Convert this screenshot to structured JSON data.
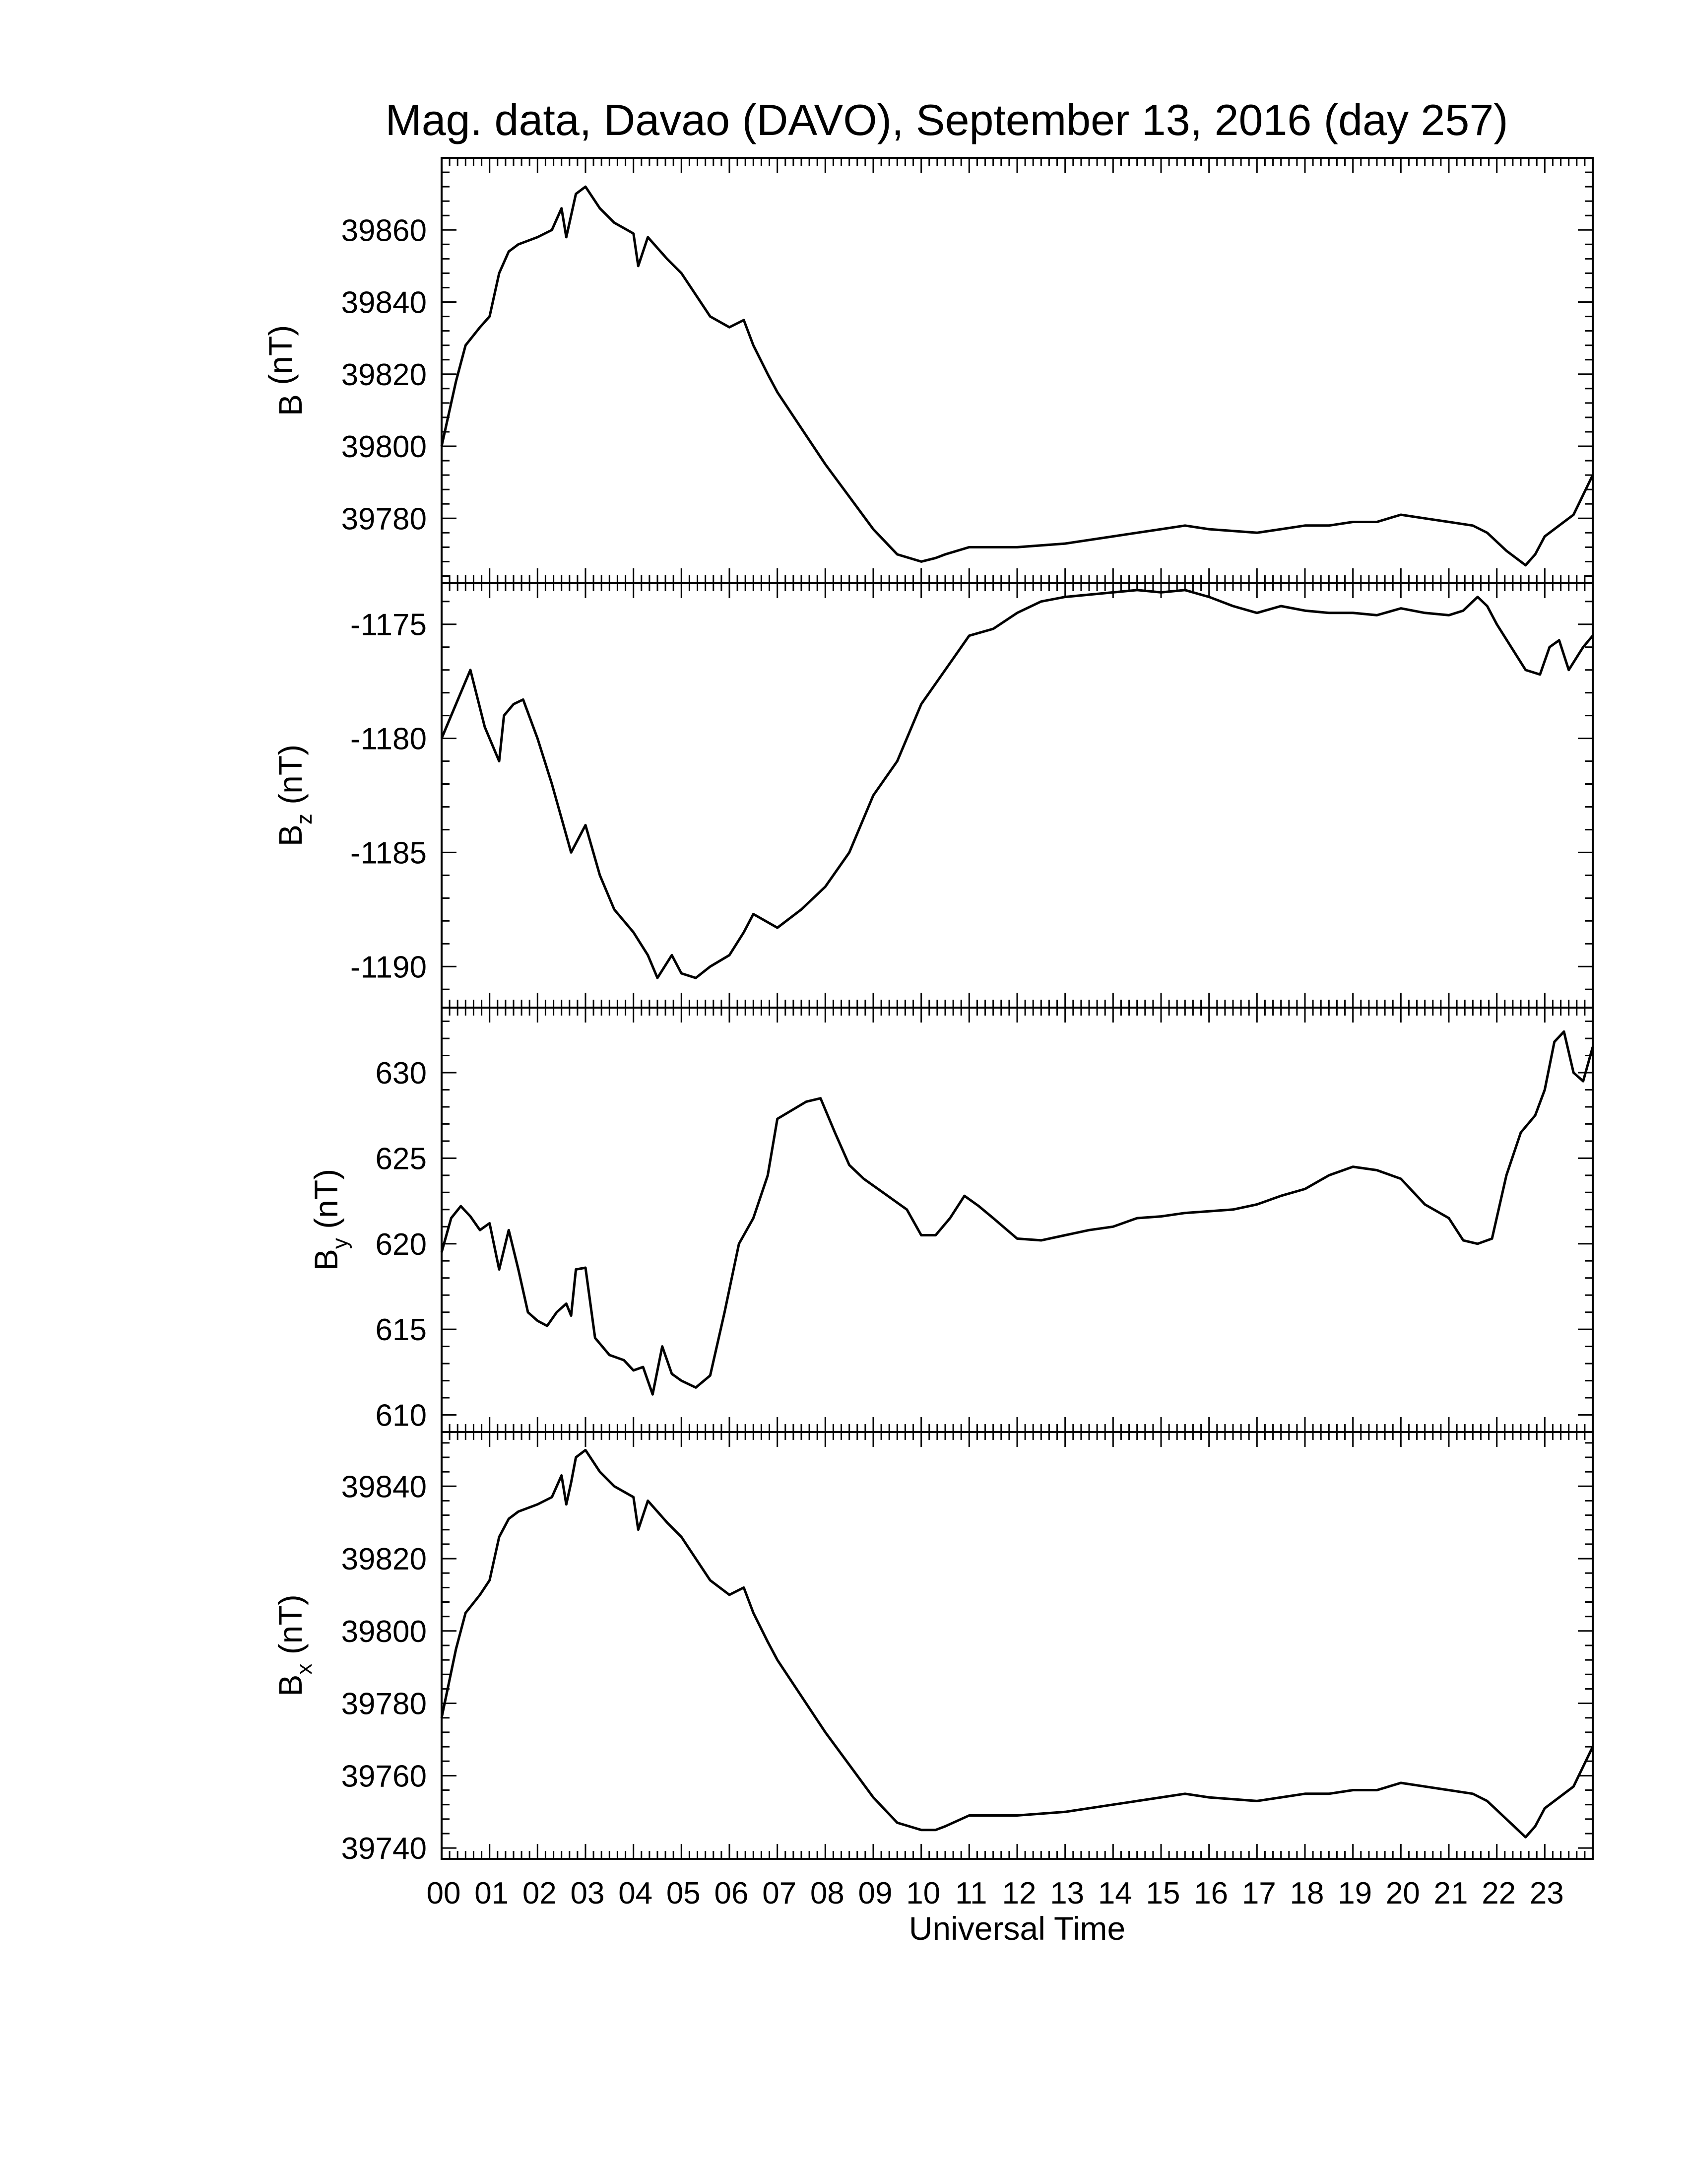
{
  "chart_data": [
    {
      "type": "line",
      "title": "Mag. data, Davao (DAVO), September 13, 2016 (day 257)",
      "ylabel": "B (nT)",
      "ylabel_main": "B",
      "ylabel_sub": "",
      "ylabel_unit": " (nT)",
      "xlim": [
        0,
        24
      ],
      "ylim": [
        39762,
        39880
      ],
      "yticks": [
        39780,
        39800,
        39820,
        39840,
        39860
      ],
      "ytick_labels": [
        "39780",
        "39800",
        "39820",
        "39840",
        "39860"
      ],
      "series": [
        {
          "x": [
            0,
            0.3,
            0.5,
            0.8,
            1.0,
            1.2,
            1.4,
            1.6,
            2.0,
            2.3,
            2.5,
            2.6,
            2.7,
            2.8,
            3.0,
            3.3,
            3.6,
            4.0,
            4.1,
            4.3,
            4.5,
            4.7,
            5.0,
            5.3,
            5.6,
            6.0,
            6.3,
            6.5,
            6.8,
            7.0,
            7.5,
            8.0,
            8.5,
            9.0,
            9.5,
            10.0,
            10.3,
            10.5,
            11.0,
            11.5,
            12.0,
            13.0,
            14.0,
            14.5,
            15.0,
            15.5,
            16.0,
            17.0,
            17.5,
            18.0,
            18.5,
            19.0,
            19.5,
            20.0,
            20.5,
            21.0,
            21.5,
            21.8,
            22.2,
            22.6,
            22.8,
            23.0,
            23.3,
            23.6,
            24.0
          ],
          "y": [
            39800,
            39818,
            39828,
            39833,
            39836,
            39848,
            39854,
            39856,
            39858,
            39860,
            39866,
            39858,
            39864,
            39870,
            39872,
            39866,
            39862,
            39859,
            39850,
            39858,
            39855,
            39852,
            39848,
            39842,
            39836,
            39833,
            39835,
            39828,
            39820,
            39815,
            39805,
            39795,
            39786,
            39777,
            39770,
            39768,
            39769,
            39770,
            39772,
            39772,
            39772,
            39773,
            39775,
            39776,
            39777,
            39778,
            39777,
            39776,
            39777,
            39778,
            39778,
            39779,
            39779,
            39781,
            39780,
            39779,
            39778,
            39776,
            39771,
            39767,
            39770,
            39775,
            39778,
            39781,
            39792
          ]
        }
      ]
    },
    {
      "type": "line",
      "title": "",
      "ylabel": "Bz (nT)",
      "ylabel_main": "B",
      "ylabel_sub": "z",
      "ylabel_unit": " (nT)",
      "xlim": [
        0,
        24
      ],
      "ylim": [
        -1191.8,
        -1173.2
      ],
      "yticks": [
        -1190,
        -1185,
        -1180,
        -1175
      ],
      "ytick_labels": [
        "-1190",
        "-1185",
        "-1180",
        "-1175"
      ],
      "series": [
        {
          "x": [
            0,
            0.3,
            0.6,
            0.9,
            1.2,
            1.3,
            1.5,
            1.7,
            2.0,
            2.3,
            2.5,
            2.7,
            3.0,
            3.3,
            3.6,
            4.0,
            4.3,
            4.5,
            4.8,
            5.0,
            5.3,
            5.6,
            6.0,
            6.3,
            6.5,
            7.0,
            7.5,
            8.0,
            8.5,
            9.0,
            9.5,
            10.0,
            10.5,
            11.0,
            11.5,
            12.0,
            12.5,
            13.0,
            14.0,
            14.5,
            15.0,
            15.5,
            16.0,
            16.5,
            17.0,
            17.5,
            18.0,
            18.5,
            19.0,
            19.5,
            20.0,
            20.5,
            21.0,
            21.3,
            21.6,
            21.8,
            22.0,
            22.3,
            22.6,
            22.9,
            23.1,
            23.3,
            23.5,
            23.8,
            24.0
          ],
          "y": [
            -1180,
            -1178.5,
            -1177,
            -1179.5,
            -1181,
            -1179,
            -1178.5,
            -1178.3,
            -1180,
            -1182,
            -1183.5,
            -1185,
            -1183.8,
            -1186,
            -1187.5,
            -1188.5,
            -1189.5,
            -1190.5,
            -1189.5,
            -1190.3,
            -1190.5,
            -1190,
            -1189.5,
            -1188.5,
            -1187.7,
            -1188.3,
            -1187.5,
            -1186.5,
            -1185,
            -1182.5,
            -1181,
            -1178.5,
            -1177,
            -1175.5,
            -1175.2,
            -1174.5,
            -1174,
            -1173.8,
            -1173.6,
            -1173.5,
            -1173.6,
            -1173.5,
            -1173.8,
            -1174.2,
            -1174.5,
            -1174.2,
            -1174.4,
            -1174.5,
            -1174.5,
            -1174.6,
            -1174.3,
            -1174.5,
            -1174.6,
            -1174.4,
            -1173.8,
            -1174.2,
            -1175,
            -1176,
            -1177,
            -1177.2,
            -1176,
            -1175.7,
            -1177,
            -1176,
            -1175.5
          ]
        }
      ]
    },
    {
      "type": "line",
      "title": "",
      "ylabel": "By (nT)",
      "ylabel_main": "B",
      "ylabel_sub": "y",
      "ylabel_unit": " (nT)",
      "xlim": [
        0,
        24
      ],
      "ylim": [
        609,
        633.8
      ],
      "yticks": [
        610,
        615,
        620,
        625,
        630
      ],
      "ytick_labels": [
        "610",
        "615",
        "620",
        "625",
        "630"
      ],
      "series": [
        {
          "x": [
            0,
            0.2,
            0.4,
            0.6,
            0.8,
            1.0,
            1.2,
            1.4,
            1.6,
            1.8,
            2.0,
            2.2,
            2.4,
            2.6,
            2.7,
            2.8,
            3.0,
            3.2,
            3.5,
            3.8,
            4.0,
            4.2,
            4.4,
            4.6,
            4.8,
            5.0,
            5.3,
            5.6,
            5.9,
            6.2,
            6.5,
            6.8,
            7.0,
            7.3,
            7.6,
            7.9,
            8.2,
            8.5,
            8.8,
            9.1,
            9.4,
            9.7,
            10.0,
            10.3,
            10.6,
            10.9,
            11.2,
            11.5,
            12.0,
            12.5,
            13.0,
            13.5,
            14.0,
            14.5,
            15.0,
            15.5,
            16.0,
            16.5,
            17.0,
            17.5,
            18.0,
            18.5,
            19.0,
            19.5,
            20.0,
            20.5,
            21.0,
            21.3,
            21.6,
            21.9,
            22.2,
            22.5,
            22.8,
            23.0,
            23.2,
            23.4,
            23.6,
            23.8,
            24.0
          ],
          "y": [
            619.5,
            621.5,
            622.2,
            621.6,
            620.8,
            621.2,
            618.5,
            620.8,
            618.5,
            616,
            615.5,
            615.2,
            616,
            616.5,
            615.8,
            618.5,
            618.6,
            614.5,
            613.5,
            613.2,
            612.6,
            612.8,
            611.2,
            614,
            612.4,
            612,
            611.6,
            612.3,
            616,
            620,
            621.5,
            624,
            627.3,
            627.8,
            628.3,
            628.5,
            626.5,
            624.6,
            623.8,
            623.2,
            622.6,
            622,
            620.5,
            620.5,
            621.5,
            622.8,
            622.2,
            621.5,
            620.3,
            620.2,
            620.5,
            620.8,
            621,
            621.5,
            621.6,
            621.8,
            621.9,
            622,
            622.3,
            622.8,
            623.2,
            624,
            624.5,
            624.3,
            623.8,
            622.3,
            621.5,
            620.2,
            620,
            620.3,
            624,
            626.5,
            627.5,
            629,
            631.8,
            632.4,
            630,
            629.5,
            631.5
          ]
        }
      ]
    },
    {
      "type": "line",
      "title": "",
      "xlabel": "Universal Time",
      "ylabel": "Bx (nT)",
      "ylabel_main": "B",
      "ylabel_sub": "x",
      "ylabel_unit": " (nT)",
      "xlim": [
        0,
        24
      ],
      "ylim": [
        39737,
        39855
      ],
      "yticks": [
        39740,
        39760,
        39780,
        39800,
        39820,
        39840
      ],
      "ytick_labels": [
        "39740",
        "39760",
        "39780",
        "39800",
        "39820",
        "39840"
      ],
      "xtick_labels": [
        "00",
        "01",
        "02",
        "03",
        "04",
        "05",
        "06",
        "07",
        "08",
        "09",
        "10",
        "11",
        "12",
        "13",
        "14",
        "15",
        "16",
        "17",
        "18",
        "19",
        "20",
        "21",
        "22",
        "23"
      ],
      "series": [
        {
          "x": [
            0,
            0.3,
            0.5,
            0.8,
            1.0,
            1.2,
            1.4,
            1.6,
            2.0,
            2.3,
            2.5,
            2.6,
            2.7,
            2.8,
            3.0,
            3.3,
            3.6,
            4.0,
            4.1,
            4.3,
            4.5,
            4.7,
            5.0,
            5.3,
            5.6,
            6.0,
            6.3,
            6.5,
            6.8,
            7.0,
            7.5,
            8.0,
            8.5,
            9.0,
            9.5,
            10.0,
            10.3,
            10.5,
            11.0,
            11.5,
            12.0,
            13.0,
            14.0,
            14.5,
            15.0,
            15.5,
            16.0,
            17.0,
            17.5,
            18.0,
            18.5,
            19.0,
            19.5,
            20.0,
            20.5,
            21.0,
            21.5,
            21.8,
            22.2,
            22.6,
            22.8,
            23.0,
            23.3,
            23.6,
            24.0
          ],
          "y": [
            39776,
            39795,
            39805,
            39810,
            39814,
            39826,
            39831,
            39833,
            39835,
            39837,
            39843,
            39835,
            39841,
            39848,
            39850,
            39844,
            39840,
            39837,
            39828,
            39836,
            39833,
            39830,
            39826,
            39820,
            39814,
            39810,
            39812,
            39805,
            39797,
            39792,
            39782,
            39772,
            39763,
            39754,
            39747,
            39745,
            39745,
            39746,
            39749,
            39749,
            39749,
            39750,
            39752,
            39753,
            39754,
            39755,
            39754,
            39753,
            39754,
            39755,
            39755,
            39756,
            39756,
            39758,
            39757,
            39756,
            39755,
            39753,
            39748,
            39743,
            39746,
            39751,
            39754,
            39757,
            39768
          ]
        }
      ]
    }
  ]
}
